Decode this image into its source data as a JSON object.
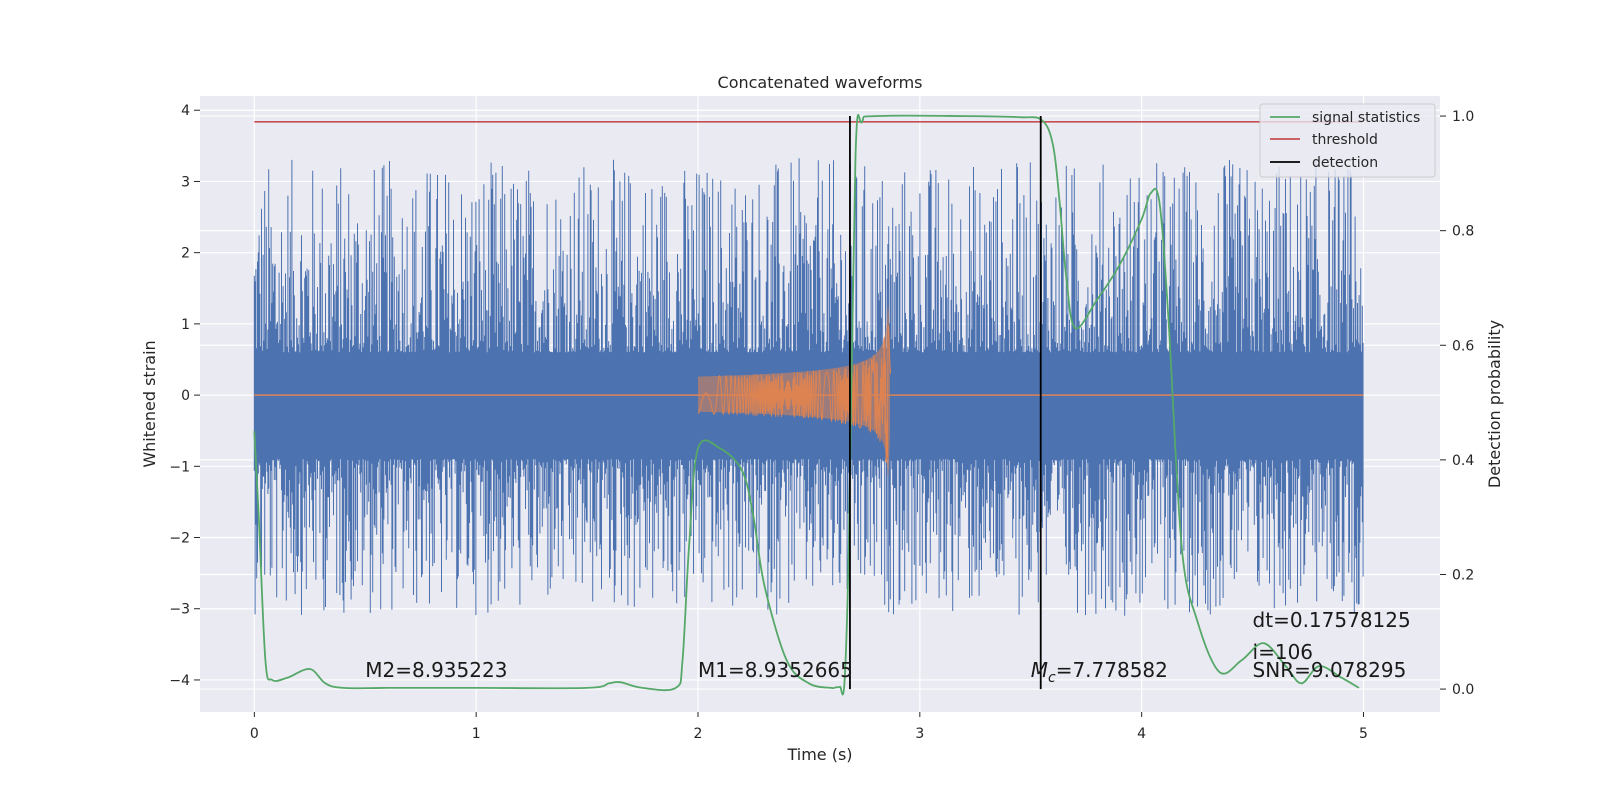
{
  "chart_data": {
    "type": "line",
    "title": "Concatenated waveforms",
    "xlabel": "Time (s)",
    "ylabel": "Whitened strain",
    "y2label": "Detection probability",
    "xlim": [
      -0.245,
      5.345
    ],
    "ylim": [
      -4.45,
      4.2
    ],
    "y2lim": [
      -0.04,
      1.035
    ],
    "grid": true,
    "legend_placement": "top-right",
    "x_ticks": [
      0,
      1,
      2,
      3,
      4,
      5
    ],
    "y_ticks": [
      -4,
      -3,
      -2,
      -1,
      0,
      1,
      2,
      3,
      4
    ],
    "y2_ticks": [
      0.0,
      0.2,
      0.4,
      0.6,
      0.8,
      1.0
    ],
    "x_tick_labels": [
      "0",
      "1",
      "2",
      "3",
      "4",
      "5"
    ],
    "y_tick_labels": [
      "−4",
      "−3",
      "−2",
      "−1",
      "0",
      "1",
      "2",
      "3",
      "4"
    ],
    "y2_tick_labels": [
      "0.0",
      "0.2",
      "0.4",
      "0.6",
      "0.8",
      "1.0"
    ],
    "colors": {
      "strain": "#4c72b0",
      "template": "#dd8452",
      "statistics": "#55a868",
      "threshold": "#c44e52",
      "detection": "#000000",
      "axes_bg": "#eaeaf2",
      "grid": "#ffffff"
    },
    "series": [
      {
        "name": "",
        "axis": "left",
        "kind": "noise",
        "x_range": [
          0,
          5
        ],
        "typical_range": [
          -0.9,
          0.6
        ],
        "peak_range": [
          -4.1,
          3.8
        ]
      },
      {
        "name": "",
        "axis": "left",
        "kind": "chirp",
        "x_range": [
          2.0,
          2.87
        ],
        "peak_time": 2.86,
        "peak_amplitude": 1.5,
        "baseline": 0
      },
      {
        "name": "signal statistics",
        "axis": "right",
        "x": [
          0.0,
          0.02,
          0.05,
          0.08,
          0.15,
          0.25,
          0.32,
          0.4,
          0.6,
          1.0,
          1.5,
          1.6,
          1.65,
          1.75,
          1.9,
          1.93,
          1.96,
          2.0,
          2.1,
          2.2,
          2.25,
          2.3,
          2.4,
          2.5,
          2.6,
          2.62,
          2.64,
          2.66,
          2.68,
          2.71,
          2.74,
          2.8,
          3.2,
          3.45,
          3.55,
          3.6,
          3.63,
          3.66,
          3.7,
          3.8,
          3.9,
          4.0,
          4.04,
          4.08,
          4.12,
          4.18,
          4.25,
          4.35,
          4.45,
          4.55,
          4.65,
          4.72,
          4.8,
          4.9,
          4.98
        ],
        "values": [
          0.45,
          0.3,
          0.05,
          0.016,
          0.02,
          0.035,
          0.01,
          0.002,
          0.002,
          0.002,
          0.002,
          0.01,
          0.012,
          0.002,
          0.002,
          0.05,
          0.25,
          0.42,
          0.42,
          0.38,
          0.3,
          0.18,
          0.05,
          0.01,
          0.002,
          0.003,
          0.004,
          0.01,
          0.25,
          0.93,
          0.99,
          1.0,
          1.0,
          0.998,
          0.993,
          0.95,
          0.85,
          0.72,
          0.63,
          0.68,
          0.74,
          0.82,
          0.865,
          0.85,
          0.65,
          0.25,
          0.12,
          0.03,
          0.05,
          0.08,
          0.04,
          0.01,
          0.04,
          0.02,
          0.002
        ]
      },
      {
        "name": "threshold",
        "axis": "right",
        "x": [
          0,
          5
        ],
        "values": [
          0.99,
          0.99
        ]
      },
      {
        "name": "detection",
        "axis": "right",
        "vertical_lines_x": [
          2.685,
          3.545
        ],
        "y_range": [
          0.0,
          1.0
        ]
      }
    ],
    "annotations": [
      {
        "text": "M2=8.935223",
        "x": 0.5,
        "y": -4
      },
      {
        "text": "M1=8.9352665",
        "x": 2.0,
        "y": -4
      },
      {
        "text": "=7.778582",
        "math_prefix": "M",
        "math_sub": "c",
        "x": 3.5,
        "y": -4
      },
      {
        "text": "dt=0.17578125",
        "x": 4.5,
        "y": -3.3
      },
      {
        "text": " i=106",
        "x": 4.5,
        "y": -3.75
      },
      {
        "text": "SNR=9.078295",
        "x": 4.5,
        "y": -4
      }
    ]
  }
}
